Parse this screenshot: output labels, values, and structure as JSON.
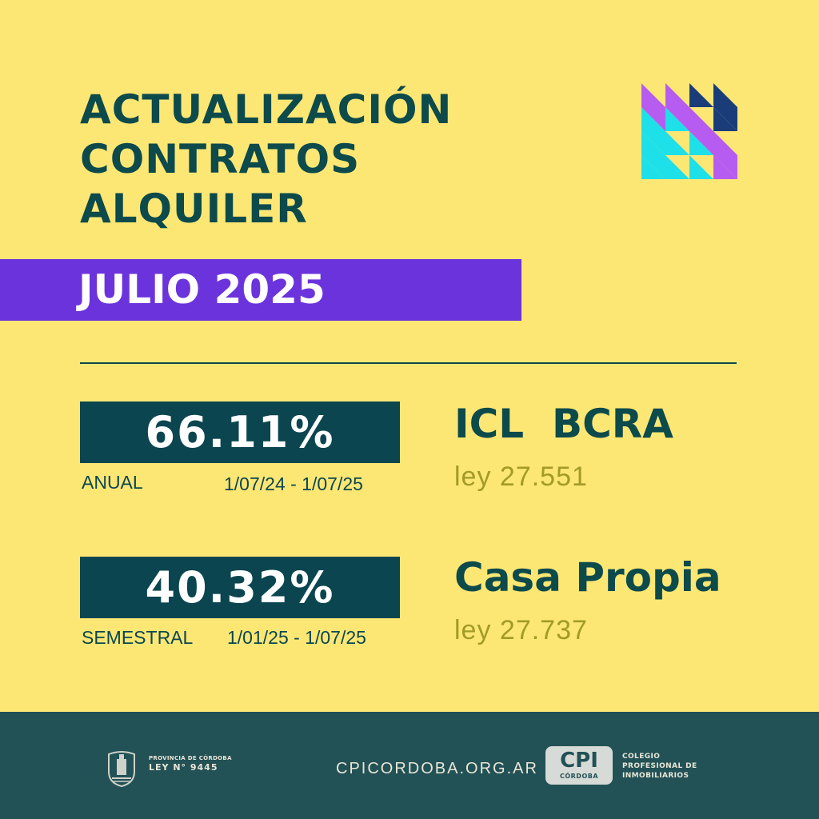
{
  "title": {
    "line1": "ACTUALIZACIÓN",
    "line2": "CONTRATOS",
    "line3": "ALQUILER"
  },
  "month": "JULIO 2025",
  "colors": {
    "background": "#fde774",
    "primary": "#0c4a4b",
    "accent": "#6b33dc",
    "law_text": "#a39a28",
    "footer": "#225156"
  },
  "pattern_icon": "triangle-grid-icon",
  "indices": [
    {
      "value": "66.11%",
      "period_label": "ANUAL",
      "date_range": "1/07/24 - 1/07/25",
      "name": "ICL  BCRA",
      "law": "ley 27.551"
    },
    {
      "value": "40.32%",
      "period_label": "SEMESTRAL",
      "date_range": "1/01/25 - 1/07/25",
      "name": "Casa Propia",
      "law": "ley 27.737"
    }
  ],
  "footer": {
    "province_line1": "PROVINCIA DE CÓRDOBA",
    "province_line2": "LEY N° 9445",
    "website": "CPICORDOBA.ORG.AR",
    "cpi_logo_big": "CPI",
    "cpi_logo_small": "CÓRDOBA",
    "cpi_line1": "COLEGIO",
    "cpi_line2": "PROFESIONAL DE",
    "cpi_line3": "INMOBILIARIOS"
  }
}
